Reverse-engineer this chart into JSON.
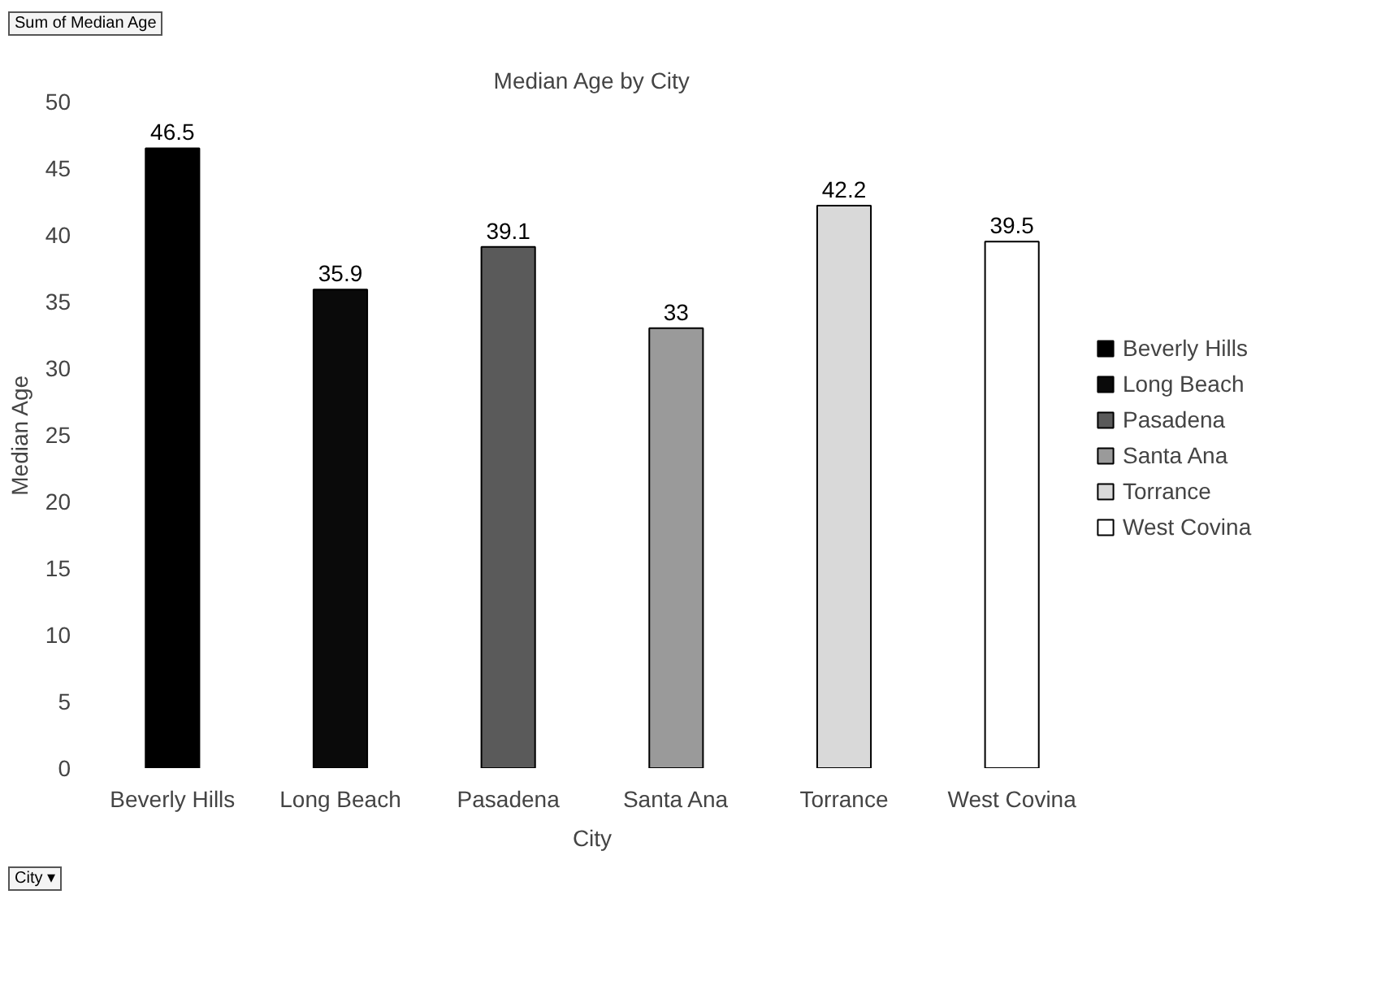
{
  "chart_data": {
    "type": "bar",
    "title": "Median Age by City",
    "xlabel": "City",
    "ylabel": "Median Age",
    "categories": [
      "Beverly Hills",
      "Long Beach",
      "Pasadena",
      "Santa Ana",
      "Torrance",
      "West Covina"
    ],
    "stacked": true,
    "series": [
      {
        "name": "Beverly Hills",
        "color": "#000000",
        "values": [
          46.5,
          null,
          null,
          null,
          null,
          null
        ]
      },
      {
        "name": "Long Beach",
        "color": "#0a0a0a",
        "values": [
          null,
          35.9,
          null,
          null,
          null,
          null
        ]
      },
      {
        "name": "Pasadena",
        "color": "#5a5a5a",
        "values": [
          null,
          null,
          39.1,
          null,
          null,
          null
        ]
      },
      {
        "name": "Santa Ana",
        "color": "#9a9a9a",
        "values": [
          null,
          null,
          null,
          33,
          null,
          null
        ]
      },
      {
        "name": "Torrance",
        "color": "#d9d9d9",
        "values": [
          null,
          null,
          null,
          null,
          42.2,
          null
        ]
      },
      {
        "name": "West Covina",
        "color": "#ffffff",
        "values": [
          null,
          null,
          null,
          null,
          null,
          39.5
        ]
      }
    ],
    "ylim": [
      0,
      50
    ],
    "yticks": [
      0,
      5,
      10,
      15,
      20,
      25,
      30,
      35,
      40,
      45,
      50
    ],
    "data_labels": true,
    "legend": "right",
    "grid": false,
    "annotations": [
      "Sum of Median Age",
      "City ▾"
    ]
  }
}
